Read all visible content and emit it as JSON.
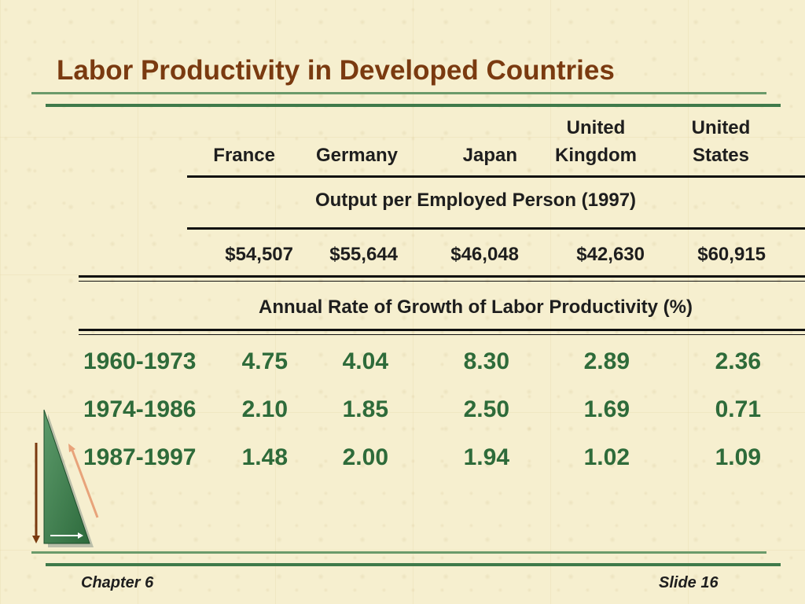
{
  "slide": {
    "title": "Labor Productivity in Developed Countries",
    "footer_left": "Chapter 6",
    "footer_right": "Slide 16"
  },
  "table": {
    "columns": [
      {
        "line1": "",
        "line2": "France"
      },
      {
        "line1": "",
        "line2": "Germany"
      },
      {
        "line1": "",
        "line2": "Japan"
      },
      {
        "line1": "United",
        "line2": "Kingdom"
      },
      {
        "line1": "United",
        "line2": "States"
      }
    ],
    "output_label": "Output per Employed Person (1997)",
    "output_values": [
      "$54,507",
      "$55,644",
      "$46,048",
      "$42,630",
      "$60,915"
    ],
    "growth_label": "Annual Rate of Growth of Labor Productivity (%)",
    "growth_rows": [
      {
        "period": "1960-1973",
        "values": [
          "4.75",
          "4.04",
          "8.30",
          "2.89",
          "2.36"
        ]
      },
      {
        "period": "1974-1986",
        "values": [
          "2.10",
          "1.85",
          "2.50",
          "1.69",
          "0.71"
        ]
      },
      {
        "period": "1987-1997",
        "values": [
          "1.48",
          "2.00",
          "1.94",
          "1.02",
          "1.09"
        ]
      }
    ]
  },
  "colors": {
    "title": "#7a3a10",
    "data_green": "#2e6b3a",
    "rule_green": "#3f7a4a",
    "background": "#f6efcf"
  }
}
